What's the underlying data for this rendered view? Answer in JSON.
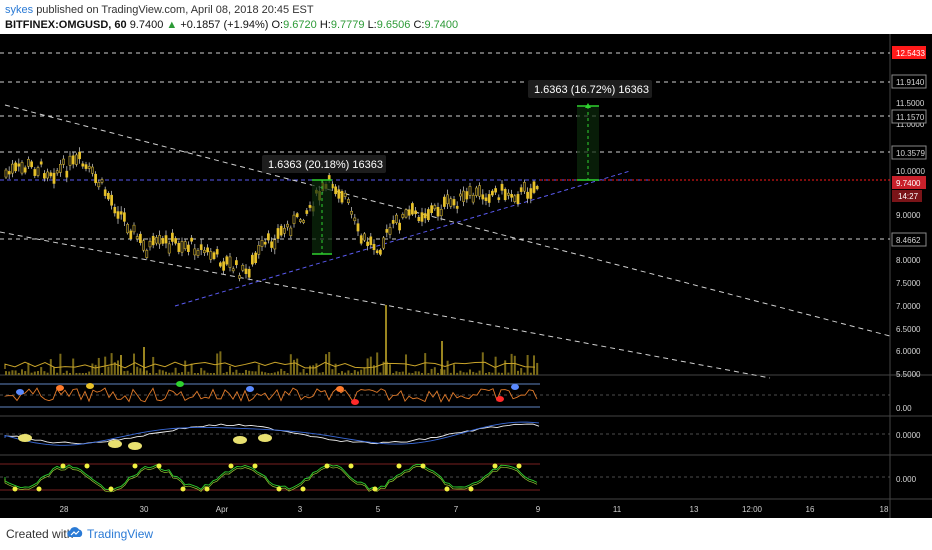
{
  "header": {
    "username": "sykes",
    "published_text": "published on TradingView.com, April 08, 2018 20:45 EST",
    "symbol": "BITFINEX:OMGUSD, 60",
    "last_price": "9.7400",
    "change_arrow": "▲",
    "change": "+0.1857 (+1.94%)",
    "o_label": "O:",
    "o": "9.6720",
    "h_label": "H:",
    "h": "9.7779",
    "l_label": "L:",
    "l": "9.6506",
    "c_label": "C:",
    "c": "9.7400"
  },
  "price_axis": {
    "ticks": [
      "11.5000",
      "11.0000",
      "10.0000",
      "9.0000",
      "8.0000",
      "7.5000",
      "7.0000",
      "6.5000",
      "6.0000",
      "5.5000"
    ],
    "levels": [
      "12.5433",
      "11.9140",
      "11.1570",
      "10.3579",
      "8.4662"
    ],
    "current_price": "9.7400",
    "countdown": "14:27",
    "osc1_label": "0.00",
    "osc2_label": "0.0000",
    "osc3_label": "0.000"
  },
  "measurements": [
    {
      "label": "1.6363 (20.18%) 16363"
    },
    {
      "label": "1.6363 (16.72%) 16363"
    }
  ],
  "time_axis": {
    "labels": [
      "28",
      "30",
      "Apr",
      "3",
      "5",
      "7",
      "9",
      "11",
      "13",
      "12:00",
      "16",
      "18"
    ]
  },
  "footer": {
    "created_with": "Created with",
    "brand": "TradingView"
  },
  "colors": {
    "background": "#000000",
    "candle": "#e8c22a",
    "wick": "#c8c8c8",
    "trendline_dashed": "#d0d0d0",
    "support_line": "#5a5af0",
    "measure_green": "#2fd22f",
    "current_price_red": "#ff1a1a",
    "badge_red": "#c8202a"
  }
}
